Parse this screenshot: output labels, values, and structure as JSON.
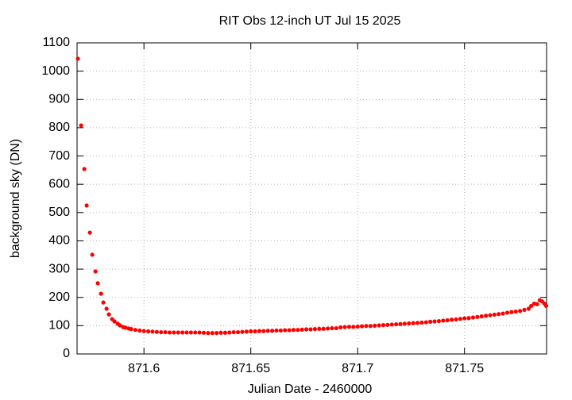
{
  "chart_data": {
    "type": "scatter",
    "title": "RIT Obs 12-inch UT Jul 15 2025",
    "x_label": "Julian Date - 2460000",
    "y_label": "background sky (DN)",
    "xlim": [
      871.5687,
      871.7884
    ],
    "ylim": [
      0,
      1100
    ],
    "xticks": [
      871.6,
      871.65,
      871.7,
      871.75
    ],
    "yticks": [
      0,
      100,
      200,
      300,
      400,
      500,
      600,
      700,
      800,
      900,
      1000,
      1100
    ],
    "grid": true,
    "series": [
      {
        "color": "#ff0000",
        "x": [
          871.5691,
          871.5706,
          871.5721,
          871.5732,
          871.5747,
          871.5758,
          871.5773,
          871.5784,
          871.5799,
          871.581,
          871.5825,
          871.5836,
          871.5851,
          871.5862,
          871.5877,
          871.5888,
          871.5903,
          871.5914,
          871.5929,
          871.594,
          871.596,
          871.598,
          871.6,
          871.602,
          871.604,
          871.606,
          871.608,
          871.61,
          871.612,
          871.614,
          871.616,
          871.618,
          871.62,
          871.622,
          871.624,
          871.626,
          871.628,
          871.63,
          871.632,
          871.634,
          871.636,
          871.638,
          871.64,
          871.642,
          871.644,
          871.646,
          871.648,
          871.65,
          871.652,
          871.654,
          871.656,
          871.658,
          871.66,
          871.662,
          871.664,
          871.666,
          871.668,
          871.67,
          871.672,
          871.674,
          871.676,
          871.678,
          871.68,
          871.682,
          871.684,
          871.686,
          871.688,
          871.69,
          871.692,
          871.694,
          871.696,
          871.698,
          871.7,
          871.702,
          871.704,
          871.706,
          871.708,
          871.71,
          871.712,
          871.714,
          871.716,
          871.718,
          871.72,
          871.722,
          871.724,
          871.726,
          871.728,
          871.73,
          871.732,
          871.734,
          871.736,
          871.738,
          871.74,
          871.742,
          871.744,
          871.746,
          871.748,
          871.75,
          871.752,
          871.754,
          871.756,
          871.758,
          871.76,
          871.762,
          871.764,
          871.766,
          871.768,
          871.77,
          871.772,
          871.774,
          871.776,
          871.778,
          871.78,
          871.7812,
          871.7826,
          871.784,
          871.7852,
          871.7863,
          871.7874,
          871.7882
        ],
        "values": [
          1044,
          808,
          654,
          525,
          429,
          351,
          292,
          250,
          213,
          182,
          160,
          140,
          123,
          115,
          107,
          101,
          95,
          93,
          90,
          88,
          85,
          83,
          81,
          80,
          79,
          78,
          77,
          77,
          76,
          76,
          76,
          76,
          76,
          76,
          76,
          76,
          75,
          74,
          74,
          74,
          75,
          75,
          76,
          77,
          77,
          78,
          79,
          80,
          80,
          81,
          81,
          82,
          82,
          83,
          83,
          84,
          84,
          85,
          85,
          86,
          87,
          87,
          88,
          89,
          89,
          90,
          91,
          91,
          94,
          95,
          96,
          96,
          97,
          98,
          99,
          99,
          100,
          101,
          102,
          103,
          104,
          105,
          106,
          107,
          108,
          109,
          110,
          111,
          112,
          114,
          115,
          116,
          118,
          119,
          121,
          122,
          124,
          126,
          127,
          129,
          131,
          133,
          135,
          137,
          139,
          141,
          143,
          146,
          148,
          150,
          152,
          156,
          160,
          170,
          178,
          176,
          190,
          186,
          178,
          170
        ]
      }
    ]
  }
}
